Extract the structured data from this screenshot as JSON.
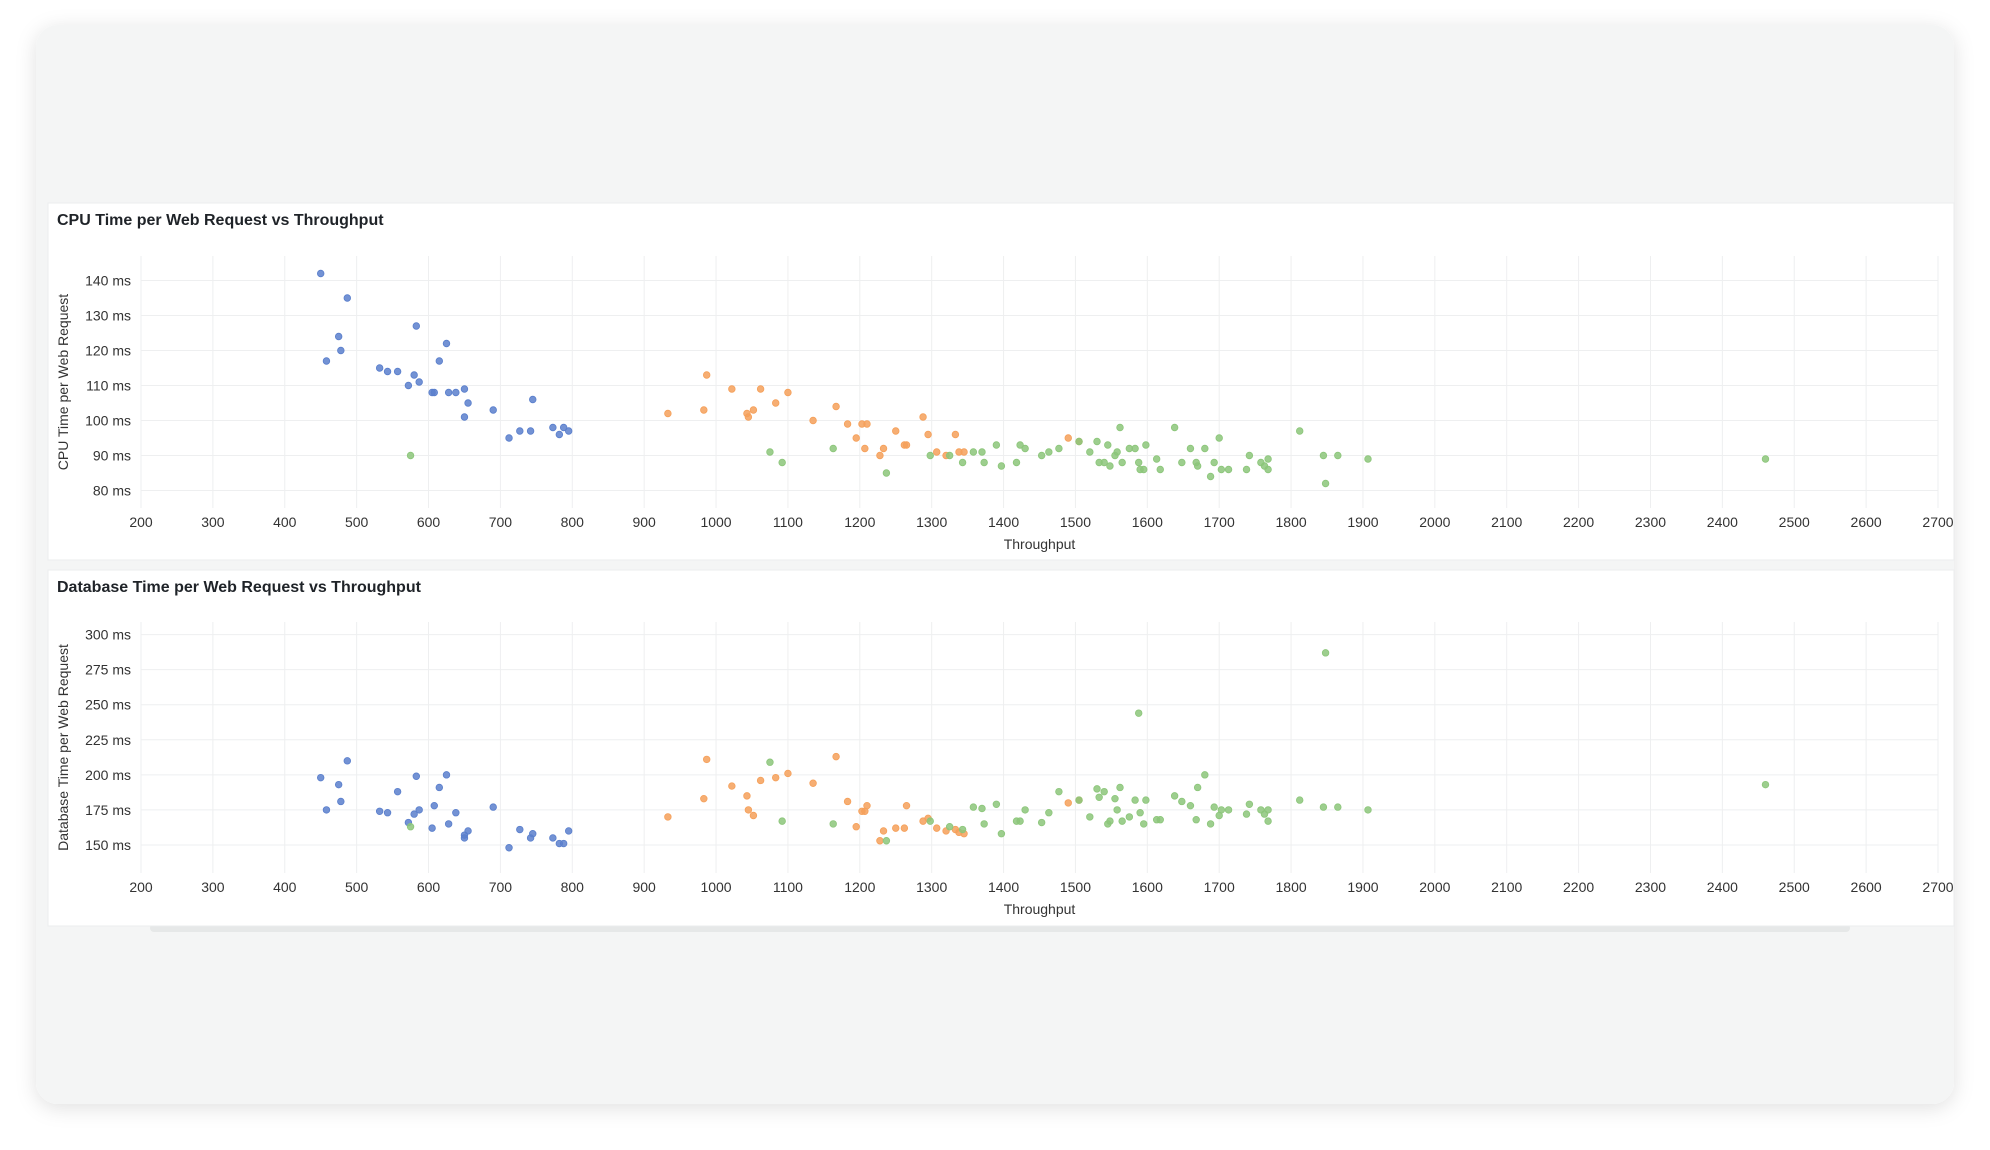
{
  "chart_data": [
    {
      "type": "scatter",
      "title": "CPU Time per Web Request vs Throughput",
      "x_label": "Throughput",
      "y_label": "CPU Time per Web Request",
      "xlim": [
        200,
        2700
      ],
      "xticks": [
        200,
        300,
        400,
        500,
        600,
        700,
        800,
        900,
        1000,
        1100,
        1200,
        1300,
        1400,
        1500,
        1600,
        1700,
        1800,
        1900,
        2000,
        2100,
        2200,
        2300,
        2400,
        2500,
        2600,
        2700
      ],
      "ylim": [
        75,
        147
      ],
      "yticks": [
        {
          "value": 80,
          "label": "80 ms"
        },
        {
          "value": 90,
          "label": "90 ms"
        },
        {
          "value": 100,
          "label": "100 ms"
        },
        {
          "value": 110,
          "label": "110 ms"
        },
        {
          "value": 120,
          "label": "120 ms"
        },
        {
          "value": 130,
          "label": "130 ms"
        },
        {
          "value": 140,
          "label": "140 ms"
        }
      ],
      "grid": true,
      "series": [
        {
          "color": "#5a7fcc",
          "x": [
            450,
            487,
            458,
            475,
            478,
            583,
            625,
            615,
            532,
            543,
            557,
            580,
            587,
            572,
            605,
            608,
            628,
            638,
            650,
            655,
            650,
            690,
            712,
            727,
            742,
            745,
            773,
            782,
            788,
            795
          ],
          "values": [
            142,
            135,
            117,
            124,
            120,
            127,
            122,
            117,
            115,
            114,
            114,
            113,
            111,
            110,
            108,
            108,
            108,
            108,
            109,
            105,
            101,
            103,
            95,
            97,
            97,
            106,
            98,
            96,
            98,
            97
          ]
        },
        {
          "color": "#f5a05a",
          "x": [
            933,
            983,
            987,
            1022,
            1043,
            1045,
            1052,
            1062,
            1083,
            1100,
            1135,
            1167,
            1183,
            1195,
            1203,
            1207,
            1210,
            1228,
            1233,
            1250,
            1262,
            1265,
            1288,
            1295,
            1307,
            1320,
            1333,
            1338,
            1345,
            1490,
            1505
          ],
          "values": [
            102,
            103,
            113,
            109,
            102,
            101,
            103,
            109,
            105,
            108,
            100,
            104,
            99,
            95,
            99,
            92,
            99,
            90,
            92,
            97,
            93,
            93,
            101,
            96,
            91,
            90,
            96,
            91,
            91,
            95,
            94
          ]
        },
        {
          "color": "#8cc67a",
          "x": [
            575,
            1075,
            1092,
            1163,
            1237,
            1298,
            1325,
            1343,
            1358,
            1370,
            1373,
            1390,
            1397,
            1418,
            1423,
            1430,
            1453,
            1463,
            1477,
            1505,
            1520,
            1530,
            1533,
            1540,
            1545,
            1548,
            1555,
            1558,
            1562,
            1565,
            1575,
            1583,
            1588,
            1590,
            1595,
            1598,
            1613,
            1618,
            1638,
            1648,
            1660,
            1668,
            1670,
            1680,
            1688,
            1693,
            1700,
            1703,
            1713,
            1738,
            1742,
            1758,
            1763,
            1768,
            1768,
            1812,
            1845,
            1848,
            1865,
            1907,
            2460
          ],
          "values": [
            90,
            91,
            88,
            92,
            85,
            90,
            90,
            88,
            91,
            91,
            88,
            93,
            87,
            88,
            93,
            92,
            90,
            91,
            92,
            94,
            91,
            94,
            88,
            88,
            93,
            87,
            90,
            91,
            98,
            88,
            92,
            92,
            88,
            86,
            86,
            93,
            89,
            86,
            98,
            88,
            92,
            88,
            87,
            92,
            84,
            88,
            95,
            86,
            86,
            86,
            90,
            88,
            87,
            86,
            89,
            97,
            90,
            82,
            90,
            89,
            89
          ]
        }
      ]
    },
    {
      "type": "scatter",
      "title": "Database Time per Web Request vs Throughput",
      "x_label": "Throughput",
      "y_label": "Database Time per Web Request",
      "xlim": [
        200,
        2700
      ],
      "xticks": [
        200,
        300,
        400,
        500,
        600,
        700,
        800,
        900,
        1000,
        1100,
        1200,
        1300,
        1400,
        1500,
        1600,
        1700,
        1800,
        1900,
        2000,
        2100,
        2200,
        2300,
        2400,
        2500,
        2600,
        2700
      ],
      "ylim": [
        130,
        309
      ],
      "yticks": [
        {
          "value": 150,
          "label": "150 ms"
        },
        {
          "value": 175,
          "label": "175 ms"
        },
        {
          "value": 200,
          "label": "200 ms"
        },
        {
          "value": 225,
          "label": "225 ms"
        },
        {
          "value": 250,
          "label": "250 ms"
        },
        {
          "value": 275,
          "label": "275 ms"
        },
        {
          "value": 300,
          "label": "300 ms"
        }
      ],
      "grid": true,
      "series": [
        {
          "color": "#5a7fcc",
          "x": [
            450,
            487,
            458,
            475,
            478,
            583,
            625,
            615,
            532,
            543,
            557,
            580,
            587,
            572,
            605,
            608,
            628,
            638,
            650,
            655,
            650,
            690,
            712,
            727,
            742,
            745,
            773,
            782,
            788,
            795
          ],
          "values": [
            198,
            210,
            175,
            193,
            181,
            199,
            200,
            191,
            174,
            173,
            188,
            172,
            175,
            166,
            162,
            178,
            165,
            173,
            157,
            160,
            155,
            177,
            148,
            161,
            155,
            158,
            155,
            151,
            151,
            160
          ]
        },
        {
          "color": "#f5a05a",
          "x": [
            933,
            983,
            987,
            1022,
            1043,
            1045,
            1052,
            1062,
            1083,
            1100,
            1135,
            1167,
            1183,
            1195,
            1203,
            1207,
            1210,
            1228,
            1233,
            1250,
            1262,
            1265,
            1288,
            1295,
            1307,
            1320,
            1333,
            1338,
            1345,
            1490,
            1505
          ],
          "values": [
            170,
            183,
            211,
            192,
            185,
            175,
            171,
            196,
            198,
            201,
            194,
            213,
            181,
            163,
            174,
            174,
            178,
            153,
            160,
            162,
            162,
            178,
            167,
            169,
            162,
            160,
            161,
            159,
            158,
            180,
            182
          ]
        },
        {
          "color": "#8cc67a",
          "x": [
            575,
            1075,
            1092,
            1163,
            1237,
            1298,
            1325,
            1343,
            1358,
            1370,
            1373,
            1390,
            1397,
            1418,
            1423,
            1430,
            1453,
            1463,
            1477,
            1505,
            1520,
            1530,
            1533,
            1540,
            1545,
            1548,
            1555,
            1558,
            1562,
            1565,
            1575,
            1583,
            1588,
            1590,
            1595,
            1598,
            1613,
            1618,
            1638,
            1648,
            1660,
            1668,
            1670,
            1680,
            1688,
            1693,
            1700,
            1703,
            1713,
            1738,
            1742,
            1758,
            1763,
            1768,
            1768,
            1812,
            1845,
            1848,
            1865,
            1907,
            2460
          ],
          "values": [
            163,
            209,
            167,
            165,
            153,
            167,
            163,
            161,
            177,
            176,
            165,
            179,
            158,
            167,
            167,
            175,
            166,
            173,
            188,
            182,
            170,
            190,
            184,
            188,
            165,
            167,
            183,
            175,
            191,
            167,
            170,
            182,
            244,
            173,
            165,
            182,
            168,
            168,
            185,
            181,
            178,
            168,
            191,
            200,
            165,
            177,
            171,
            175,
            175,
            172,
            179,
            175,
            172,
            167,
            175,
            182,
            177,
            287,
            177,
            175,
            193
          ]
        }
      ]
    }
  ]
}
